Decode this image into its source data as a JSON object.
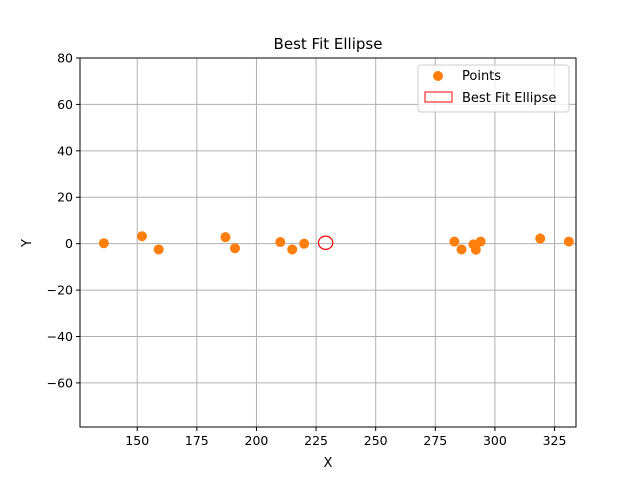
{
  "chart_data": {
    "type": "scatter",
    "title": "Best Fit Ellipse",
    "xlabel": "X",
    "ylabel": "Y",
    "xlim": [
      126,
      334
    ],
    "ylim": [
      -79,
      80
    ],
    "xticks": [
      150,
      175,
      200,
      225,
      250,
      275,
      300,
      325
    ],
    "yticks": [
      80,
      60,
      40,
      20,
      0,
      -20,
      -40,
      -60
    ],
    "grid": true,
    "legend_position": "top-right",
    "colors": {
      "points": "#ff7f0e",
      "ellipse": "#ff0000",
      "grid": "#b0b0b0"
    },
    "series": [
      {
        "name": "Points",
        "kind": "scatter",
        "points": [
          {
            "x": 136,
            "y": 0.2
          },
          {
            "x": 152,
            "y": 3.2
          },
          {
            "x": 159,
            "y": -2.5
          },
          {
            "x": 187,
            "y": 2.8
          },
          {
            "x": 191,
            "y": -2.0
          },
          {
            "x": 210,
            "y": 0.7
          },
          {
            "x": 215,
            "y": -2.5
          },
          {
            "x": 220,
            "y": 0.0
          },
          {
            "x": 283,
            "y": 0.9
          },
          {
            "x": 286,
            "y": -2.5
          },
          {
            "x": 291,
            "y": -0.3
          },
          {
            "x": 292,
            "y": -2.6
          },
          {
            "x": 294,
            "y": 0.9
          },
          {
            "x": 319,
            "y": 2.2
          },
          {
            "x": 331,
            "y": 0.9
          }
        ]
      },
      {
        "name": "Best Fit Ellipse",
        "kind": "ellipse",
        "center": {
          "x": 229,
          "y": 0.4
        },
        "width": 6,
        "height": 5.7
      }
    ]
  }
}
